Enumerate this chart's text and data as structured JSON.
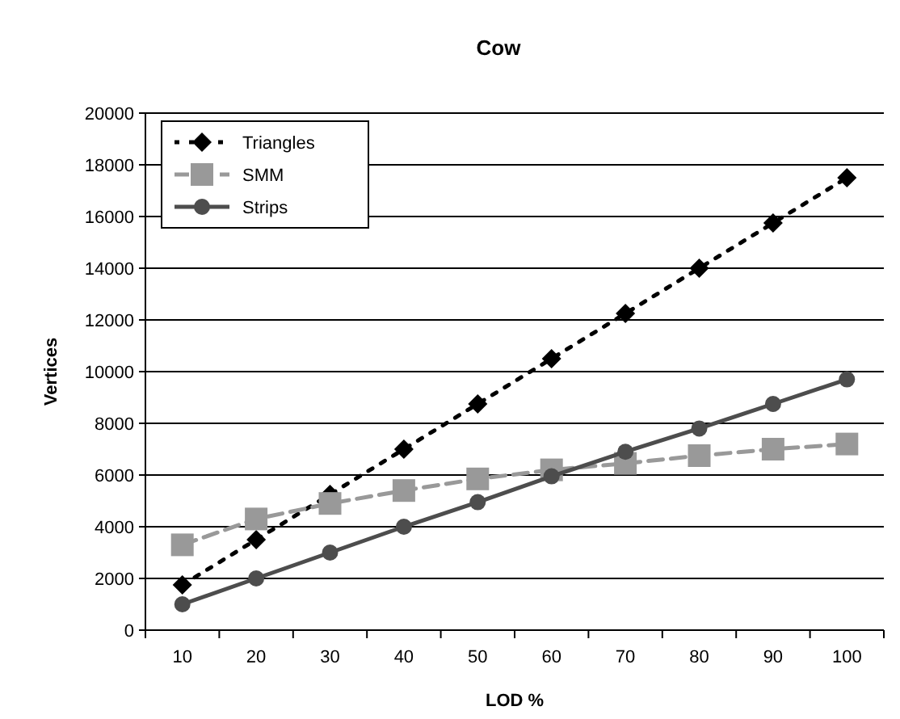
{
  "chart_data": {
    "type": "line",
    "title": "Cow",
    "xlabel": "LOD %",
    "ylabel": "Vertices",
    "categories": [
      "10",
      "20",
      "30",
      "40",
      "50",
      "60",
      "70",
      "80",
      "90",
      "100"
    ],
    "series": [
      {
        "name": "Triangles",
        "color": "#000000",
        "marker": "diamond",
        "line_style": "dotted",
        "values": [
          1750,
          3500,
          5250,
          7000,
          8750,
          10500,
          12250,
          14000,
          15750,
          17500
        ]
      },
      {
        "name": "SMM",
        "color": "#999999",
        "marker": "square",
        "line_style": "dashed",
        "values": [
          3300,
          4300,
          4900,
          5400,
          5850,
          6200,
          6450,
          6750,
          7000,
          7200
        ]
      },
      {
        "name": "Strips",
        "color": "#4d4d4d",
        "marker": "circle",
        "line_style": "solid",
        "values": [
          1000,
          2000,
          3000,
          4000,
          4950,
          5950,
          6900,
          7800,
          8750,
          9700
        ]
      }
    ],
    "ylim": [
      0,
      20000
    ],
    "yticks": [
      0,
      2000,
      4000,
      6000,
      8000,
      10000,
      12000,
      14000,
      16000,
      18000,
      20000
    ],
    "grid": "y",
    "legend": "top left"
  }
}
